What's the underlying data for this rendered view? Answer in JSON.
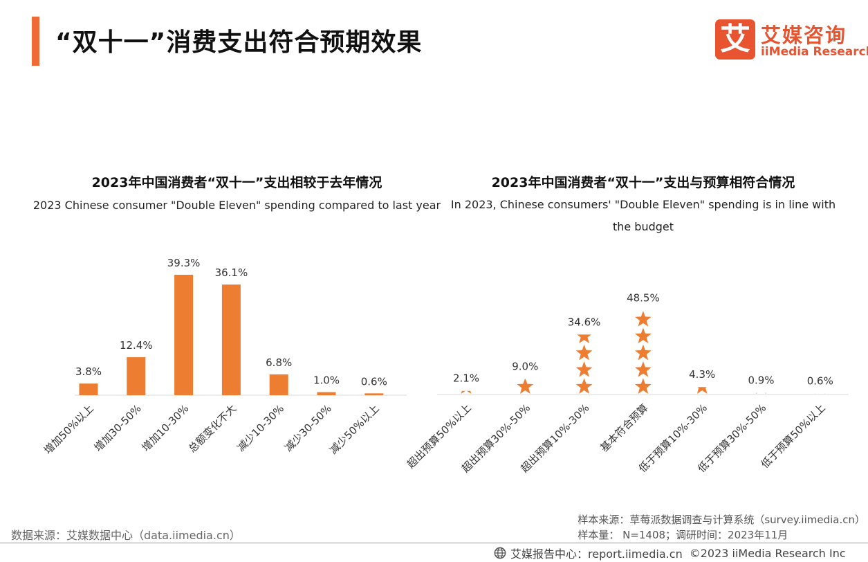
{
  "header": {
    "title": "“双十一”消费支出符合预期效果",
    "logo_mark": "艾",
    "logo_cn": "艾媒咨询",
    "logo_en": "iiMedia Research",
    "accent_color": "#f06a35"
  },
  "chart_data": [
    {
      "type": "bar",
      "title": "2023年中国消费者“双十一”支出相较于去年情况",
      "subtitle": "2023 Chinese consumer \"Double Eleven\" spending compared to last year",
      "categories": [
        "增加50%以上",
        "增加30-50%",
        "增加10-30%",
        "总额变化不大",
        "减少10-30%",
        "减少30-50%",
        "减少50%以上"
      ],
      "values": [
        3.8,
        12.4,
        39.3,
        36.1,
        6.8,
        1.0,
        0.6
      ],
      "value_labels": [
        "3.8%",
        "12.4%",
        "39.3%",
        "36.1%",
        "6.8%",
        "1.0%",
        "0.6%"
      ],
      "unit": "%",
      "color": "#ed7d31",
      "grid": false
    },
    {
      "type": "bar",
      "title": "2023年中国消费者“双十一”支出与预算相符合情况",
      "subtitle": "In 2023, Chinese consumers' \"Double Eleven\" spending is in line with the budget",
      "categories": [
        "超出预算50%以上",
        "超出预算30%-50%",
        "超出预算10%-30%",
        "基本符合预算",
        "低于预算10%-30%",
        "低于预算30%-50%",
        "低于预算50%以上"
      ],
      "values": [
        2.1,
        9.0,
        34.6,
        48.5,
        4.3,
        0.9,
        0.6
      ],
      "value_labels": [
        "2.1%",
        "9.0%",
        "34.6%",
        "48.5%",
        "4.3%",
        "0.9%",
        "0.6%"
      ],
      "unit": "%",
      "mark": "star-icon",
      "color": "#ed7d31",
      "grid": false
    }
  ],
  "footer": {
    "data_source": "数据来源：艾媒数据中心（data.iimedia.cn）",
    "sample_source": "样本来源：草莓派数据调查与计算系统（survey.iimedia.cn）",
    "sample_size": "样本量： N=1408；调研时间：2023年11月",
    "report_center": "艾媒报告中心：report.iimedia.cn",
    "copyright": "©2023  iiMedia Research  Inc"
  }
}
